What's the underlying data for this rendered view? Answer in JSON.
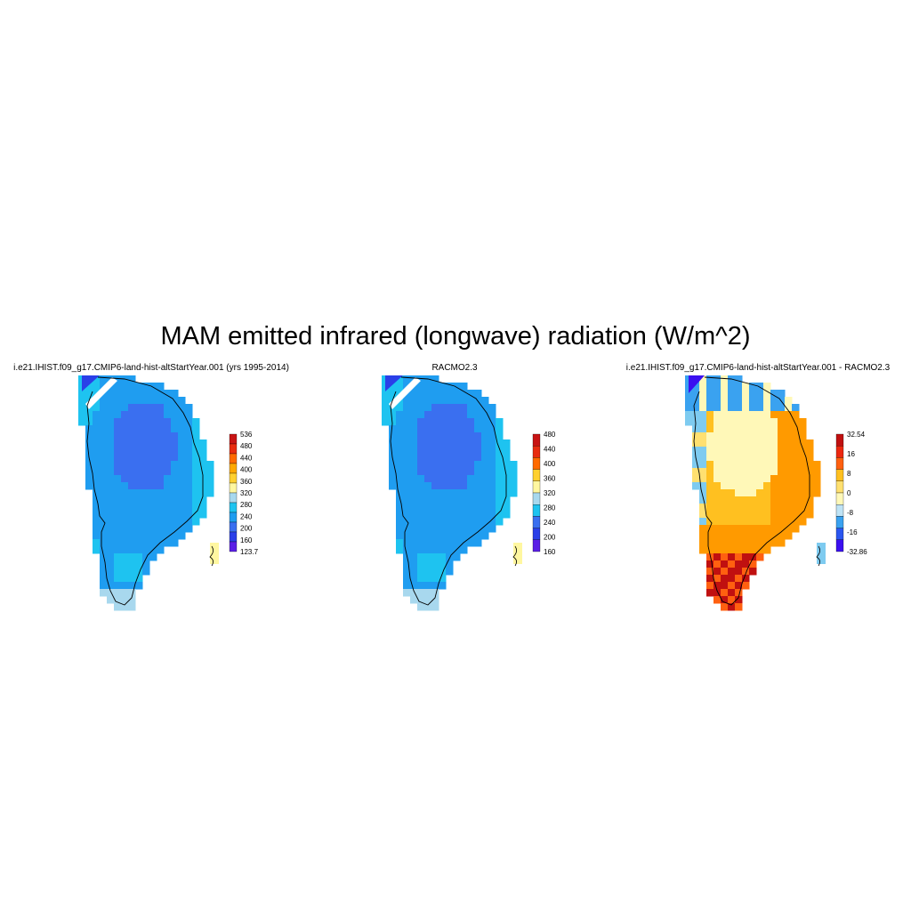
{
  "figure": {
    "title": "MAM emitted infrared (longwave) radiation (W/m^2)"
  },
  "colors": {
    "seq": [
      "#5a1fe6",
      "#2a3fe8",
      "#3a6ff0",
      "#1f9df0",
      "#1ec3f0",
      "#a8d8ee",
      "#fff7a0",
      "#ffd030",
      "#ffa800",
      "#ff6a00",
      "#e82c10",
      "#c81414"
    ],
    "diff": [
      "#3b10f0",
      "#2b56f0",
      "#3aa2f0",
      "#7ecbf0",
      "#bfe3f5",
      "#fff8b8",
      "#ffe070",
      "#ffc020",
      "#ff9a00",
      "#ff6010",
      "#ec2810",
      "#c01010"
    ],
    "coast": "#000000"
  },
  "panels": [
    {
      "id": "model",
      "title": "i.e21.IHIST.f09_g17.CMIP6-land-hist-altStartYear.001 (yrs 1995-2014)",
      "colorbar": {
        "palette": "seq",
        "labels": [
          "536",
          "480",
          "440",
          "400",
          "360",
          "320",
          "280",
          "240",
          "200",
          "160",
          "123.7"
        ],
        "boxes": 12
      },
      "field": "model"
    },
    {
      "id": "obs",
      "title": "RACMO2.3",
      "colorbar": {
        "palette": "seq",
        "labels": [
          "480",
          "440",
          "400",
          "360",
          "320",
          "280",
          "240",
          "200",
          "160"
        ],
        "boxes": 10
      },
      "field": "model"
    },
    {
      "id": "diff",
      "title": "i.e21.IHIST.f09_g17.CMIP6-land-hist-altStartYear.001 - RACMO2.3",
      "colorbar": {
        "palette": "diff",
        "labels": [
          "32.54",
          "16",
          "8",
          "0",
          "-8",
          "-16",
          "-32.86"
        ],
        "boxes": 10
      },
      "field": "diff"
    }
  ]
}
